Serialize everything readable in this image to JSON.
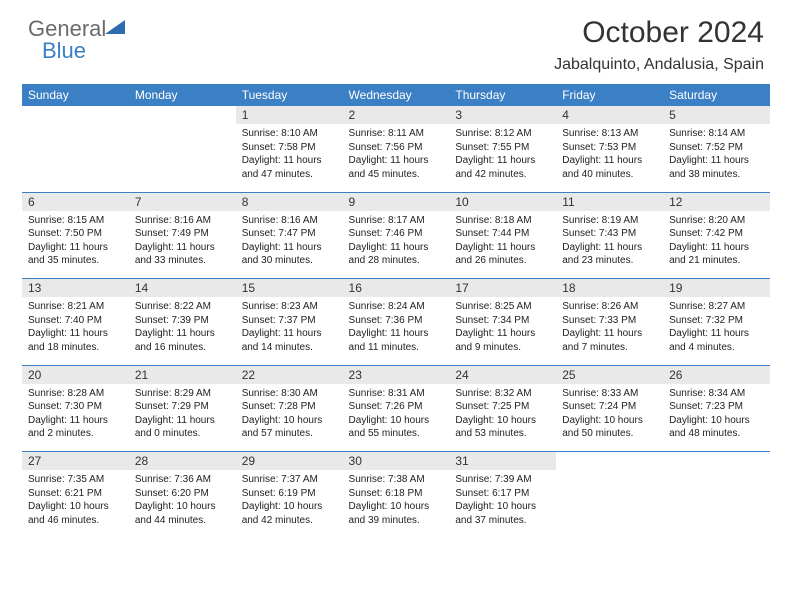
{
  "logo": {
    "general": "General",
    "blue": "Blue"
  },
  "title": "October 2024",
  "location": "Jabalquinto, Andalusia, Spain",
  "colors": {
    "header_bg": "#3b7fc4",
    "header_text": "#ffffff",
    "daynum_bg": "#e9e9e9",
    "text": "#222222",
    "rule": "#3b7fc4"
  },
  "day_headers": [
    "Sunday",
    "Monday",
    "Tuesday",
    "Wednesday",
    "Thursday",
    "Friday",
    "Saturday"
  ],
  "weeks": [
    [
      {
        "n": "",
        "sr": "",
        "ss": "",
        "dl": ""
      },
      {
        "n": "",
        "sr": "",
        "ss": "",
        "dl": ""
      },
      {
        "n": "1",
        "sr": "Sunrise: 8:10 AM",
        "ss": "Sunset: 7:58 PM",
        "dl": "Daylight: 11 hours and 47 minutes."
      },
      {
        "n": "2",
        "sr": "Sunrise: 8:11 AM",
        "ss": "Sunset: 7:56 PM",
        "dl": "Daylight: 11 hours and 45 minutes."
      },
      {
        "n": "3",
        "sr": "Sunrise: 8:12 AM",
        "ss": "Sunset: 7:55 PM",
        "dl": "Daylight: 11 hours and 42 minutes."
      },
      {
        "n": "4",
        "sr": "Sunrise: 8:13 AM",
        "ss": "Sunset: 7:53 PM",
        "dl": "Daylight: 11 hours and 40 minutes."
      },
      {
        "n": "5",
        "sr": "Sunrise: 8:14 AM",
        "ss": "Sunset: 7:52 PM",
        "dl": "Daylight: 11 hours and 38 minutes."
      }
    ],
    [
      {
        "n": "6",
        "sr": "Sunrise: 8:15 AM",
        "ss": "Sunset: 7:50 PM",
        "dl": "Daylight: 11 hours and 35 minutes."
      },
      {
        "n": "7",
        "sr": "Sunrise: 8:16 AM",
        "ss": "Sunset: 7:49 PM",
        "dl": "Daylight: 11 hours and 33 minutes."
      },
      {
        "n": "8",
        "sr": "Sunrise: 8:16 AM",
        "ss": "Sunset: 7:47 PM",
        "dl": "Daylight: 11 hours and 30 minutes."
      },
      {
        "n": "9",
        "sr": "Sunrise: 8:17 AM",
        "ss": "Sunset: 7:46 PM",
        "dl": "Daylight: 11 hours and 28 minutes."
      },
      {
        "n": "10",
        "sr": "Sunrise: 8:18 AM",
        "ss": "Sunset: 7:44 PM",
        "dl": "Daylight: 11 hours and 26 minutes."
      },
      {
        "n": "11",
        "sr": "Sunrise: 8:19 AM",
        "ss": "Sunset: 7:43 PM",
        "dl": "Daylight: 11 hours and 23 minutes."
      },
      {
        "n": "12",
        "sr": "Sunrise: 8:20 AM",
        "ss": "Sunset: 7:42 PM",
        "dl": "Daylight: 11 hours and 21 minutes."
      }
    ],
    [
      {
        "n": "13",
        "sr": "Sunrise: 8:21 AM",
        "ss": "Sunset: 7:40 PM",
        "dl": "Daylight: 11 hours and 18 minutes."
      },
      {
        "n": "14",
        "sr": "Sunrise: 8:22 AM",
        "ss": "Sunset: 7:39 PM",
        "dl": "Daylight: 11 hours and 16 minutes."
      },
      {
        "n": "15",
        "sr": "Sunrise: 8:23 AM",
        "ss": "Sunset: 7:37 PM",
        "dl": "Daylight: 11 hours and 14 minutes."
      },
      {
        "n": "16",
        "sr": "Sunrise: 8:24 AM",
        "ss": "Sunset: 7:36 PM",
        "dl": "Daylight: 11 hours and 11 minutes."
      },
      {
        "n": "17",
        "sr": "Sunrise: 8:25 AM",
        "ss": "Sunset: 7:34 PM",
        "dl": "Daylight: 11 hours and 9 minutes."
      },
      {
        "n": "18",
        "sr": "Sunrise: 8:26 AM",
        "ss": "Sunset: 7:33 PM",
        "dl": "Daylight: 11 hours and 7 minutes."
      },
      {
        "n": "19",
        "sr": "Sunrise: 8:27 AM",
        "ss": "Sunset: 7:32 PM",
        "dl": "Daylight: 11 hours and 4 minutes."
      }
    ],
    [
      {
        "n": "20",
        "sr": "Sunrise: 8:28 AM",
        "ss": "Sunset: 7:30 PM",
        "dl": "Daylight: 11 hours and 2 minutes."
      },
      {
        "n": "21",
        "sr": "Sunrise: 8:29 AM",
        "ss": "Sunset: 7:29 PM",
        "dl": "Daylight: 11 hours and 0 minutes."
      },
      {
        "n": "22",
        "sr": "Sunrise: 8:30 AM",
        "ss": "Sunset: 7:28 PM",
        "dl": "Daylight: 10 hours and 57 minutes."
      },
      {
        "n": "23",
        "sr": "Sunrise: 8:31 AM",
        "ss": "Sunset: 7:26 PM",
        "dl": "Daylight: 10 hours and 55 minutes."
      },
      {
        "n": "24",
        "sr": "Sunrise: 8:32 AM",
        "ss": "Sunset: 7:25 PM",
        "dl": "Daylight: 10 hours and 53 minutes."
      },
      {
        "n": "25",
        "sr": "Sunrise: 8:33 AM",
        "ss": "Sunset: 7:24 PM",
        "dl": "Daylight: 10 hours and 50 minutes."
      },
      {
        "n": "26",
        "sr": "Sunrise: 8:34 AM",
        "ss": "Sunset: 7:23 PM",
        "dl": "Daylight: 10 hours and 48 minutes."
      }
    ],
    [
      {
        "n": "27",
        "sr": "Sunrise: 7:35 AM",
        "ss": "Sunset: 6:21 PM",
        "dl": "Daylight: 10 hours and 46 minutes."
      },
      {
        "n": "28",
        "sr": "Sunrise: 7:36 AM",
        "ss": "Sunset: 6:20 PM",
        "dl": "Daylight: 10 hours and 44 minutes."
      },
      {
        "n": "29",
        "sr": "Sunrise: 7:37 AM",
        "ss": "Sunset: 6:19 PM",
        "dl": "Daylight: 10 hours and 42 minutes."
      },
      {
        "n": "30",
        "sr": "Sunrise: 7:38 AM",
        "ss": "Sunset: 6:18 PM",
        "dl": "Daylight: 10 hours and 39 minutes."
      },
      {
        "n": "31",
        "sr": "Sunrise: 7:39 AM",
        "ss": "Sunset: 6:17 PM",
        "dl": "Daylight: 10 hours and 37 minutes."
      },
      {
        "n": "",
        "sr": "",
        "ss": "",
        "dl": ""
      },
      {
        "n": "",
        "sr": "",
        "ss": "",
        "dl": ""
      }
    ]
  ]
}
